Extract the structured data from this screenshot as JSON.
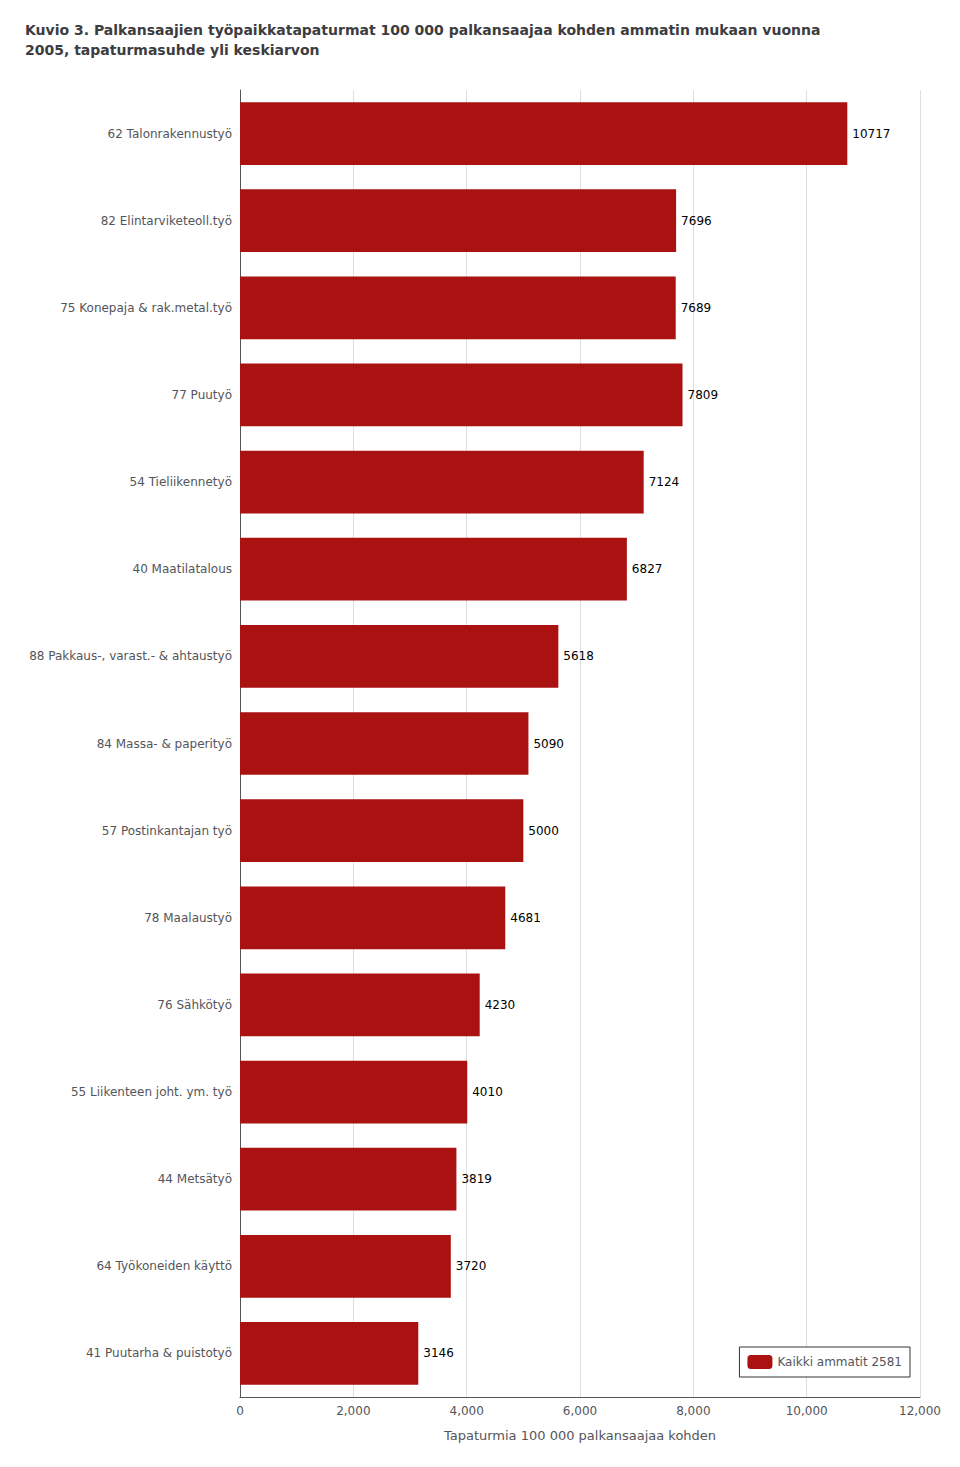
{
  "chart_data": {
    "type": "bar",
    "orientation": "horizontal",
    "title": "Kuvio 3. Palkansaajien työpaikkatapaturmat 100 000 palkansaajaa kohden ammatin mukaan vuonna\n2005, tapaturmasuhde yli keskiarvon",
    "x_label": "Tapaturmia 100 000 palkansaajaa kohden",
    "categories": [
      "62 Talonrakennustyö",
      "82 Elintarviketeoll.työ",
      "75 Konepaja & rak.metal.työ",
      "77 Puutyö",
      "54 Tieliikennetyö",
      "40 Maatilatalous",
      "88 Pakkaus-, varast.- & ahtaustyö",
      "84 Massa- & paperityö",
      "57 Postinkantajan työ",
      "78 Maalaustyö",
      "76 Sähkötyö",
      "55 Liikenteen joht. ym. työ",
      "44 Metsätyö",
      "64 Työkoneiden käyttö",
      "41 Puutarha & puistotyö"
    ],
    "series": [
      {
        "name": "Kaikki ammatit 2581",
        "color": "#AA1111",
        "values": [
          10717,
          7696,
          7689,
          7809,
          7124,
          6827,
          5618,
          5090,
          5000,
          4681,
          4230,
          4010,
          3819,
          3720,
          3146
        ]
      }
    ],
    "xlim": [
      0,
      12000
    ],
    "xticks": [
      0,
      2000,
      4000,
      6000,
      8000,
      10000,
      12000
    ],
    "grid": true,
    "legend": "lower right",
    "data_labels": true
  }
}
